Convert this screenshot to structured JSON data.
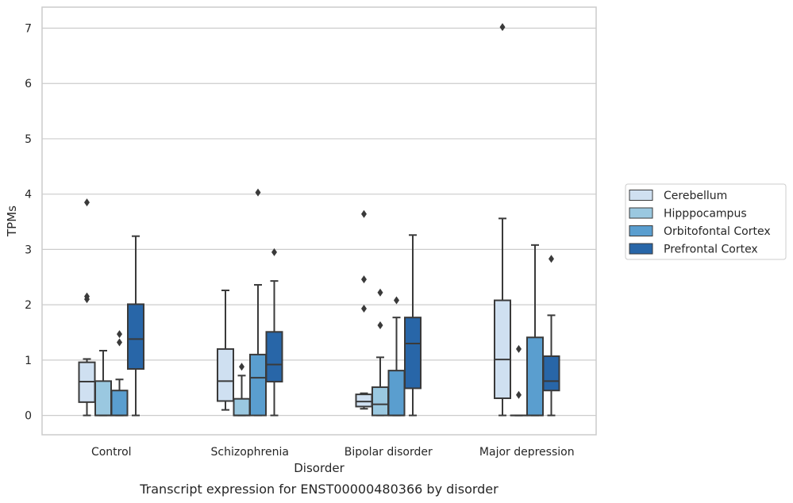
{
  "chart_data": {
    "type": "box",
    "caption": "Transcript expression for ENST00000480366 by disorder",
    "xlabel": "Disorder",
    "ylabel": "TPMs",
    "ylim": [
      -0.35,
      7.38
    ],
    "yticks": [
      0,
      1,
      2,
      3,
      4,
      5,
      6,
      7
    ],
    "grid": "horizontal",
    "legend_position": "right",
    "categories": [
      "Control",
      "Schizophrenia",
      "Bipolar disorder",
      "Major depression"
    ],
    "series": [
      {
        "name": "Cerebellum",
        "color": "#cfe0f1",
        "boxes": [
          {
            "whislo": 0,
            "q1": 0.24,
            "med": 0.61,
            "q3": 0.96,
            "whishi": 1.02,
            "fliers": [
              2.1,
              2.15,
              3.85
            ]
          },
          {
            "whislo": 0.1,
            "q1": 0.26,
            "med": 0.62,
            "q3": 1.2,
            "whishi": 2.26,
            "fliers": []
          },
          {
            "whislo": 0.12,
            "q1": 0.16,
            "med": 0.25,
            "q3": 0.38,
            "whishi": 0.4,
            "fliers": [
              1.93,
              2.46,
              3.64
            ]
          },
          {
            "whislo": 0,
            "q1": 0.31,
            "med": 1.01,
            "q3": 2.08,
            "whishi": 3.56,
            "fliers": [
              7.02
            ]
          }
        ]
      },
      {
        "name": "Hipppocampus",
        "color": "#9ac8e0",
        "boxes": [
          {
            "whislo": 0,
            "q1": 0,
            "med": 0,
            "q3": 0.62,
            "whishi": 1.17,
            "fliers": []
          },
          {
            "whislo": 0,
            "q1": 0,
            "med": 0,
            "q3": 0.3,
            "whishi": 0.72,
            "fliers": [
              0.88
            ]
          },
          {
            "whislo": 0,
            "q1": 0,
            "med": 0.2,
            "q3": 0.51,
            "whishi": 1.05,
            "fliers": [
              1.63,
              2.22
            ]
          },
          {
            "whislo": 0,
            "q1": 0,
            "med": 0,
            "q3": 0,
            "whishi": 0,
            "fliers": [
              0.37,
              1.2
            ]
          }
        ]
      },
      {
        "name": "Orbitofontal Cortex",
        "color": "#5a9ecf",
        "boxes": [
          {
            "whislo": 0,
            "q1": 0,
            "med": 0,
            "q3": 0.45,
            "whishi": 0.65,
            "fliers": [
              1.32,
              1.47
            ]
          },
          {
            "whislo": 0,
            "q1": 0,
            "med": 0.68,
            "q3": 1.1,
            "whishi": 2.36,
            "fliers": [
              4.03
            ]
          },
          {
            "whislo": 0,
            "q1": 0,
            "med": 0,
            "q3": 0.81,
            "whishi": 1.77,
            "fliers": [
              2.08
            ]
          },
          {
            "whislo": 0,
            "q1": 0,
            "med": 0,
            "q3": 1.41,
            "whishi": 3.08,
            "fliers": []
          }
        ]
      },
      {
        "name": "Prefrontal Cortex",
        "color": "#2866a8",
        "boxes": [
          {
            "whislo": 0,
            "q1": 0.84,
            "med": 1.38,
            "q3": 2.01,
            "whishi": 3.24,
            "fliers": []
          },
          {
            "whislo": 0,
            "q1": 0.61,
            "med": 0.92,
            "q3": 1.51,
            "whishi": 2.43,
            "fliers": [
              2.95
            ]
          },
          {
            "whislo": 0,
            "q1": 0.49,
            "med": 1.3,
            "q3": 1.77,
            "whishi": 3.26,
            "fliers": []
          },
          {
            "whislo": 0,
            "q1": 0.45,
            "med": 0.62,
            "q3": 1.07,
            "whishi": 1.81,
            "fliers": [
              2.83
            ]
          }
        ]
      }
    ]
  }
}
